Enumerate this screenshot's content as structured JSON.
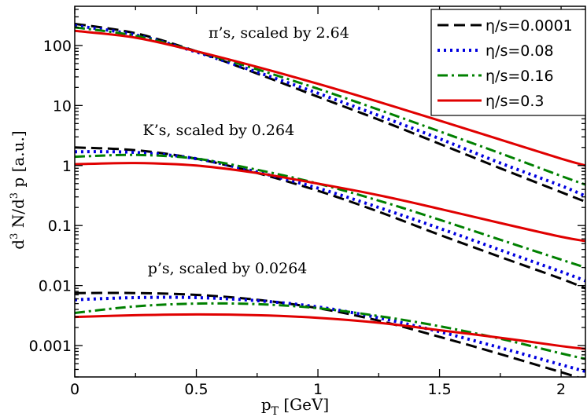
{
  "chart_data": {
    "type": "line",
    "xlabel": "p_T [GeV]",
    "xlabel_main": "p",
    "xlabel_sub": "T",
    "xlabel_rest": " [GeV]",
    "ylabel": "d^3N/d^3p [a.u.]",
    "ylabel_parts": {
      "d1": "d",
      "sup1": "3",
      "mid": " N/d",
      "sup2": "3",
      "end": " p   [a.u.]"
    },
    "xlim": [
      0,
      2.1
    ],
    "ylim": [
      0.0003,
      450
    ],
    "yscale": "log",
    "x_ticks": [
      0,
      0.5,
      1,
      1.5,
      2
    ],
    "x_tick_labels": [
      "0",
      "0.5",
      "1",
      "1.5",
      "2"
    ],
    "y_ticks": [
      0.001,
      0.01,
      0.1,
      1,
      10,
      100
    ],
    "y_tick_labels": [
      "0.001",
      "0.01",
      "0.1",
      "1",
      "10",
      "100"
    ],
    "legend_position": "top-right",
    "grid": false,
    "annotations": [
      {
        "id": "pi",
        "text": "π’s, scaled by 2.64",
        "x": 0.55,
        "y": 135
      },
      {
        "id": "k",
        "text": "K’s, scaled by 0.264",
        "x": 0.28,
        "y": 3.2
      },
      {
        "id": "p",
        "text": "p’s, scaled by 0.0264",
        "x": 0.3,
        "y": 0.016
      }
    ],
    "series_styles": [
      {
        "name": "η/s=0.0001",
        "color": "#000000",
        "dash": "14,7",
        "width": 3
      },
      {
        "name": "η/s=0.08",
        "color": "#0000e0",
        "dash": "3,5",
        "width": 4
      },
      {
        "name": "η/s=0.16",
        "color": "#008000",
        "dash": "13,5,3,5",
        "width": 3
      },
      {
        "name": "η/s=0.3",
        "color": "#e00000",
        "dash": "",
        "width": 3
      }
    ],
    "x": [
      0,
      0.25,
      0.5,
      0.75,
      1.0,
      1.25,
      1.5,
      1.75,
      2.0,
      2.1
    ],
    "series": [
      {
        "group": "pions",
        "name": "η/s=0.0001",
        "values": [
          230,
          160,
          80,
          34,
          14,
          5.8,
          2.3,
          0.9,
          0.36,
          0.25
        ]
      },
      {
        "group": "pions",
        "name": "η/s=0.08",
        "values": [
          215,
          150,
          78,
          36,
          16,
          6.8,
          2.8,
          1.1,
          0.46,
          0.31
        ]
      },
      {
        "group": "pions",
        "name": "η/s=0.16",
        "values": [
          200,
          145,
          80,
          40,
          19,
          8.5,
          3.7,
          1.6,
          0.67,
          0.48
        ]
      },
      {
        "group": "pions",
        "name": "η/s=0.3",
        "values": [
          175,
          135,
          80,
          44,
          23,
          11.5,
          5.6,
          2.7,
          1.3,
          1.0
        ]
      },
      {
        "group": "kaons",
        "name": "η/s=0.0001",
        "values": [
          2.0,
          1.8,
          1.3,
          0.75,
          0.38,
          0.17,
          0.07,
          0.03,
          0.013,
          0.009
        ]
      },
      {
        "group": "kaons",
        "name": "η/s=0.08",
        "values": [
          1.7,
          1.65,
          1.3,
          0.78,
          0.42,
          0.2,
          0.09,
          0.039,
          0.017,
          0.012
        ]
      },
      {
        "group": "kaons",
        "name": "η/s=0.16",
        "values": [
          1.4,
          1.5,
          1.3,
          0.85,
          0.5,
          0.26,
          0.125,
          0.058,
          0.027,
          0.02
        ]
      },
      {
        "group": "kaons",
        "name": "η/s=0.3",
        "values": [
          1.05,
          1.1,
          1.0,
          0.75,
          0.5,
          0.32,
          0.19,
          0.11,
          0.065,
          0.055
        ]
      },
      {
        "group": "protons",
        "name": "η/s=0.0001",
        "values": [
          0.0075,
          0.0075,
          0.007,
          0.0058,
          0.0042,
          0.0026,
          0.0014,
          0.00072,
          0.00036,
          0.00027
        ]
      },
      {
        "group": "protons",
        "name": "η/s=0.08",
        "values": [
          0.0058,
          0.0063,
          0.0063,
          0.0056,
          0.0044,
          0.0029,
          0.0017,
          0.00092,
          0.00048,
          0.00037
        ]
      },
      {
        "group": "protons",
        "name": "η/s=0.16",
        "values": [
          0.0035,
          0.0045,
          0.005,
          0.0049,
          0.0042,
          0.0031,
          0.0021,
          0.0013,
          0.00074,
          0.0006
        ]
      },
      {
        "group": "protons",
        "name": "η/s=0.3",
        "values": [
          0.003,
          0.0032,
          0.0033,
          0.0032,
          0.0029,
          0.0024,
          0.0018,
          0.00135,
          0.00098,
          0.00088
        ]
      }
    ]
  }
}
